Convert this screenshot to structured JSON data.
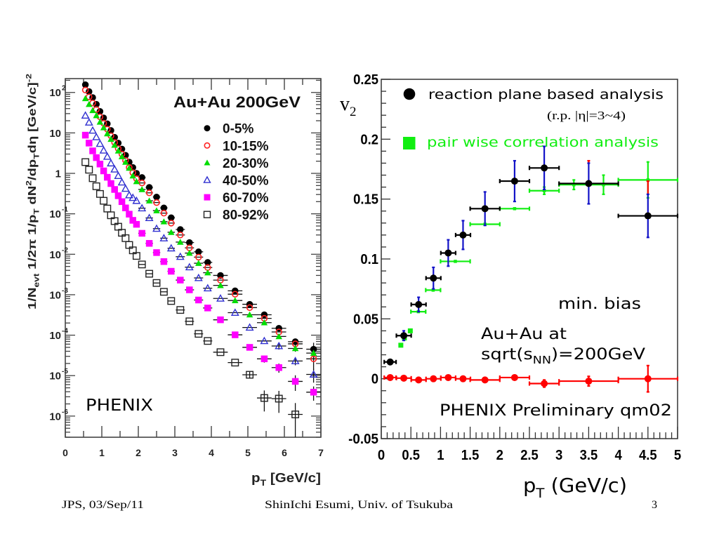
{
  "footer": {
    "left": "JPS, 03/Sep/11",
    "center": "ShinIchi Esumi, Univ. of Tsukuba",
    "page": "3"
  },
  "chart_data": [
    {
      "type": "scatter",
      "title": "Au+Au 200GeV",
      "annotation": "PHENIX",
      "xlabel": [
        {
          "t": "p"
        },
        {
          "t": "T",
          "sub": true
        },
        {
          "t": " [GeV/c]"
        }
      ],
      "ylabel": [
        {
          "t": "1/N"
        },
        {
          "t": "evt",
          "sub": true
        },
        {
          "t": " 1/2π 1/p"
        },
        {
          "t": "T",
          "sub": true
        },
        {
          "t": " dN"
        },
        {
          "t": "2",
          "sup": true
        },
        {
          "t": "/dp"
        },
        {
          "t": "T",
          "sub": true
        },
        {
          "t": "dη [GeV/c]"
        },
        {
          "t": "-2",
          "sup": true
        }
      ],
      "xlim": [
        0,
        7
      ],
      "ylim": [
        3e-07,
        220
      ],
      "yscale": "log",
      "grid": false,
      "legend_position": "top-right",
      "xticks": [
        "0",
        "1",
        "2",
        "3",
        "4",
        "5",
        "6",
        "7"
      ],
      "yticks": [
        {
          "value": 100,
          "base": "10",
          "exp": "2"
        },
        {
          "value": 10,
          "base": "10",
          "exp": ""
        },
        {
          "value": 1,
          "base": "1",
          "exp": ""
        },
        {
          "value": 0.1,
          "base": "10",
          "exp": "-1"
        },
        {
          "value": 0.01,
          "base": "10",
          "exp": "-2"
        },
        {
          "value": 0.001,
          "base": "10",
          "exp": "-3"
        },
        {
          "value": 0.0001,
          "base": "10",
          "exp": "-4"
        },
        {
          "value": 1e-05,
          "base": "10",
          "exp": "-5"
        },
        {
          "value": 1e-06,
          "base": "10",
          "exp": "-6"
        }
      ],
      "x": [
        0.55,
        0.65,
        0.75,
        0.85,
        0.95,
        1.05,
        1.15,
        1.25,
        1.35,
        1.45,
        1.55,
        1.65,
        1.75,
        1.85,
        1.95,
        2.1,
        2.3,
        2.5,
        2.7,
        2.9,
        3.15,
        3.4,
        3.65,
        3.9,
        4.25,
        4.65,
        5.05,
        5.45,
        5.85,
        6.3,
        6.8
      ],
      "xerr": [
        0.05,
        0.05,
        0.05,
        0.05,
        0.05,
        0.05,
        0.05,
        0.05,
        0.05,
        0.05,
        0.05,
        0.05,
        0.05,
        0.05,
        0.05,
        0.1,
        0.1,
        0.1,
        0.1,
        0.1,
        0.125,
        0.125,
        0.125,
        0.125,
        0.2,
        0.2,
        0.2,
        0.2,
        0.2,
        0.2,
        0.2
      ],
      "series": [
        {
          "name": "0-5%",
          "marker": "filled-circle",
          "color": "#000000",
          "values": [
            155,
            105,
            75,
            51,
            34,
            23.5,
            16.8,
            11.5,
            7.8,
            5.6,
            4.0,
            2.8,
            1.9,
            1.4,
            1.0,
            0.79,
            0.45,
            0.26,
            0.14,
            0.08,
            0.041,
            0.0195,
            0.0115,
            0.0063,
            0.003,
            0.00125,
            0.00058,
            0.00032,
            0.000148,
            6.9e-05,
            4.5e-05
          ],
          "yerr": [
            0,
            0,
            0,
            0,
            0,
            0,
            0,
            0,
            0,
            0,
            0,
            0,
            0,
            0,
            0,
            0,
            0,
            0,
            0,
            0,
            0,
            0,
            0,
            0,
            0,
            0,
            0,
            4e-05,
            2e-05,
            1.2e-05,
            2e-05
          ]
        },
        {
          "name": "10-15%",
          "marker": "open-circle",
          "color": "#ff2020",
          "values": [
            115,
            78,
            55,
            38,
            25,
            17.4,
            12.4,
            8.5,
            5.8,
            4.1,
            3.0,
            2.1,
            1.4,
            1.04,
            0.74,
            0.58,
            0.33,
            0.19,
            0.104,
            0.059,
            0.03,
            0.0144,
            0.0085,
            0.0047,
            0.0023,
            0.00103,
            0.00048,
            0.00026,
            0.00012,
            6.1e-05,
            2.6e-05
          ],
          "yerr": [
            0,
            0,
            0,
            0,
            0,
            0,
            0,
            0,
            0,
            0,
            0,
            0,
            0,
            0,
            0,
            0,
            0,
            0,
            0,
            0,
            0,
            0,
            0,
            0,
            0,
            0,
            0,
            0,
            0,
            1e-05,
            1.2e-05
          ]
        },
        {
          "name": "20-30%",
          "marker": "filled-triangle",
          "color": "#00dd00",
          "values": [
            71,
            51,
            36,
            27,
            18.6,
            13.5,
            9.6,
            7.0,
            5.0,
            3.6,
            2.6,
            1.9,
            1.35,
            0.87,
            0.63,
            0.4,
            0.21,
            0.12,
            0.064,
            0.035,
            0.02,
            0.0107,
            0.006,
            0.0035,
            0.0017,
            0.00072,
            0.00032,
            0.000204,
            9.3e-05,
            4.7e-05,
            3.6e-05
          ],
          "yerr": [
            0,
            0,
            0,
            0,
            0,
            0,
            0,
            0,
            0,
            0,
            0,
            0,
            0,
            0,
            0,
            0,
            0,
            0,
            0,
            0,
            0,
            0,
            0,
            0,
            0,
            0,
            0,
            0,
            0,
            8e-06,
            1.2e-05
          ]
        },
        {
          "name": "40-50%",
          "marker": "open-triangle",
          "color": "#3030d0",
          "values": [
            27,
            18.2,
            11.5,
            7.9,
            5.4,
            3.7,
            2.6,
            1.78,
            1.26,
            0.87,
            0.6,
            0.42,
            0.29,
            0.25,
            0.21,
            0.138,
            0.079,
            0.043,
            0.025,
            0.0141,
            0.0087,
            0.0048,
            0.0026,
            0.00145,
            0.00081,
            0.00036,
            0.000155,
            7.2e-05,
            5.4e-05,
            2.3e-05,
            1.07e-05
          ],
          "yerr": [
            0,
            0,
            0,
            0,
            0,
            0,
            0,
            0,
            0,
            0,
            0,
            0,
            0,
            0,
            0,
            0,
            0,
            0,
            0,
            0,
            0,
            0,
            0,
            0,
            0,
            0,
            0,
            0,
            1e-05,
            5e-06,
            4e-06
          ]
        },
        {
          "name": "60-70%",
          "marker": "filled-square",
          "color": "#ff00ff",
          "values": [
            8.8,
            5.6,
            3.6,
            2.45,
            1.7,
            1.15,
            0.8,
            0.56,
            0.4,
            0.28,
            0.2,
            0.14,
            0.098,
            0.069,
            0.055,
            0.033,
            0.0186,
            0.011,
            0.0066,
            0.0038,
            0.0023,
            0.00132,
            0.00074,
            0.00047,
            0.00024,
            0.000102,
            5e-05,
            2.6e-05,
            1.58e-05,
            7.2e-06,
            3.9e-06
          ],
          "yerr": [
            0,
            0,
            0,
            0,
            0,
            0,
            0,
            0,
            0,
            0,
            0,
            0,
            0,
            0,
            0,
            0,
            0,
            0,
            0,
            0,
            0,
            0,
            0,
            0,
            0,
            0,
            0,
            5e-06,
            4e-06,
            3e-06,
            1.5e-06
          ]
        },
        {
          "name": "80-92%",
          "marker": "open-square",
          "color": "#222222",
          "values": [
            1.9,
            1.23,
            0.76,
            0.48,
            0.31,
            0.21,
            0.135,
            0.092,
            0.066,
            0.048,
            0.034,
            0.025,
            0.017,
            0.0125,
            0.0091,
            0.0056,
            0.0033,
            0.00195,
            0.00118,
            0.0007,
            0.00042,
            0.00022,
            0.000108,
            7.2e-05,
            3.8e-05,
            2.1e-05,
            1.05e-05,
            2.8e-06,
            2.7e-06,
            1.1e-06,
            null
          ],
          "yerr": [
            0,
            0,
            0,
            0,
            0,
            0,
            0,
            0,
            0,
            0,
            0,
            0,
            0,
            0,
            0,
            0,
            0,
            0,
            0,
            0,
            0,
            0,
            0,
            0,
            0,
            0,
            2e-06,
            1.5e-06,
            1.5e-06,
            1e-06,
            0
          ]
        }
      ]
    },
    {
      "type": "scatter",
      "xlabel": [
        {
          "t": "p"
        },
        {
          "t": "T",
          "sub": true
        },
        {
          "t": " (GeV/c)"
        }
      ],
      "ylabel": [
        {
          "t": "v"
        },
        {
          "t": "2",
          "sub": true
        }
      ],
      "xlim": [
        0,
        5
      ],
      "ylim": [
        -0.05,
        0.25
      ],
      "grid": false,
      "legend_position": "top",
      "xticks": [
        {
          "value": 0,
          "label": "0"
        },
        {
          "value": 0.5,
          "label": "0.5"
        },
        {
          "value": 1,
          "label": "1"
        },
        {
          "value": 1.5,
          "label": "1.5"
        },
        {
          "value": 2,
          "label": "2"
        },
        {
          "value": 2.5,
          "label": "2.5"
        },
        {
          "value": 3,
          "label": "3"
        },
        {
          "value": 3.5,
          "label": "3.5"
        },
        {
          "value": 4,
          "label": "4"
        },
        {
          "value": 4.5,
          "label": "4.5"
        },
        {
          "value": 5,
          "label": "5"
        }
      ],
      "yticks": [
        {
          "value": 0.25,
          "label": "0.25"
        },
        {
          "value": 0.2,
          "label": "0.2"
        },
        {
          "value": 0.15,
          "label": "0.15"
        },
        {
          "value": 0.1,
          "label": "0.1"
        },
        {
          "value": 0.05,
          "label": "0.05"
        },
        {
          "value": 0,
          "label": "0"
        },
        {
          "value": -0.05,
          "label": "-0.05"
        }
      ],
      "legend": [
        {
          "label": "reaction plane based analysis",
          "sublabel": "(r.p. |η|=3~4)",
          "marker": "filled-circle",
          "color": "#000000"
        },
        {
          "label": "pair wise correlation analysis",
          "marker": "filled-square",
          "color": "#11ee11"
        }
      ],
      "annotations": {
        "centrality": "min. bias",
        "system_line1": "Au+Au at",
        "system_line2": [
          {
            "t": "sqrt(s"
          },
          {
            "t": "NN",
            "sub": true
          },
          {
            "t": ")=200GeV"
          }
        ],
        "source": "PHENIX Preliminary qm02"
      },
      "series": [
        {
          "name": "reaction plane based analysis",
          "marker": "filled-circle",
          "color": "#000000",
          "err_color": "#1212c8",
          "sys_color": "#ff0000",
          "x": [
            0.15,
            0.38,
            0.63,
            0.88,
            1.13,
            1.38,
            1.75,
            2.25,
            2.75,
            3.5,
            4.5
          ],
          "y": [
            0.014,
            0.036,
            0.062,
            0.084,
            0.105,
            0.12,
            0.142,
            0.165,
            0.176,
            0.163,
            0.136
          ],
          "xerr": [
            0.1,
            0.125,
            0.125,
            0.125,
            0.125,
            0.125,
            0.25,
            0.25,
            0.25,
            0.5,
            0.5
          ],
          "yerr": [
            0.001,
            0.004,
            0.006,
            0.009,
            0.011,
            0.012,
            0.014,
            0.017,
            0.018,
            0.017,
            0.018
          ],
          "sys_top": [
            null,
            null,
            null,
            null,
            null,
            null,
            null,
            null,
            null,
            0.182,
            0.165
          ]
        },
        {
          "name": "pair wise correlation analysis",
          "marker": "filled-square",
          "color": "#11ee11",
          "err_color": "#11ee11",
          "x": [
            0.33,
            0.39,
            0.49,
            0.625,
            0.875,
            1.25,
            1.75,
            2.25,
            2.75,
            3.25,
            3.75,
            4.5
          ],
          "y": [
            0.028,
            0.034,
            0.04,
            0.056,
            0.074,
            0.098,
            0.129,
            0.142,
            0.157,
            0.162,
            0.162,
            0.166
          ],
          "xerr": [
            0,
            0,
            0,
            0.125,
            0.125,
            0.25,
            0.25,
            0.25,
            0.25,
            0.25,
            0.25,
            0.5
          ],
          "yerr": [
            0,
            0,
            0,
            0,
            0,
            0,
            0,
            0,
            0.003,
            0.004,
            0.008,
            0.015
          ]
        },
        {
          "marker": "filled-circle",
          "color": "#ff0000",
          "err_color": "#ff0000",
          "x": [
            0.15,
            0.38,
            0.63,
            0.88,
            1.13,
            1.38,
            1.75,
            2.25,
            2.75,
            3.5,
            4.5
          ],
          "y": [
            0.001,
            0.0005,
            -0.001,
            0.0,
            0.001,
            0.0,
            -0.001,
            0.001,
            -0.004,
            -0.002,
            0.0
          ],
          "xerr": [
            0.1,
            0.125,
            0.125,
            0.125,
            0.125,
            0.125,
            0.25,
            0.25,
            0.25,
            0.5,
            0.5
          ],
          "yerr": [
            0.001,
            0.001,
            0.001,
            0.001,
            0.001,
            0.001,
            0.001,
            0.002,
            0.003,
            0.004,
            0.011
          ]
        }
      ]
    }
  ]
}
